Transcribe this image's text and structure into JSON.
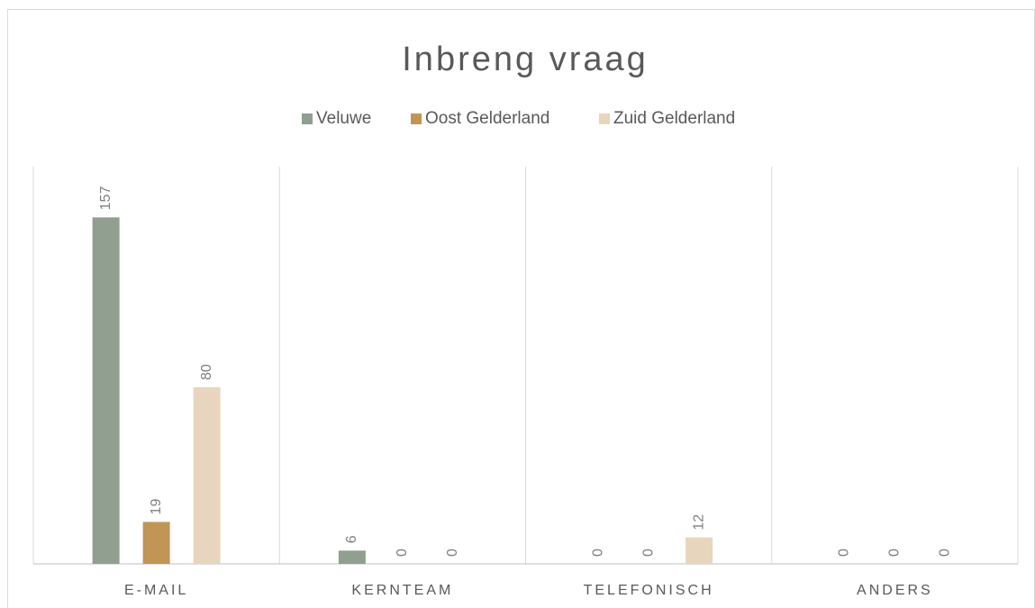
{
  "chart_data": {
    "type": "bar",
    "title": "Inbreng vraag",
    "categories": [
      "E-MAIL",
      "KERNTEAM",
      "TELEFONISCH",
      "ANDERS"
    ],
    "series": [
      {
        "name": "Veluwe",
        "color": "#909f90",
        "values": [
          157,
          6,
          0,
          0
        ]
      },
      {
        "name": "Oost Gelderland",
        "color": "#c09556",
        "values": [
          19,
          0,
          0,
          0
        ]
      },
      {
        "name": "Zuid Gelderland",
        "color": "#e8d5bd",
        "values": [
          80,
          0,
          12,
          0
        ]
      }
    ],
    "ylim": [
      0,
      180
    ]
  }
}
